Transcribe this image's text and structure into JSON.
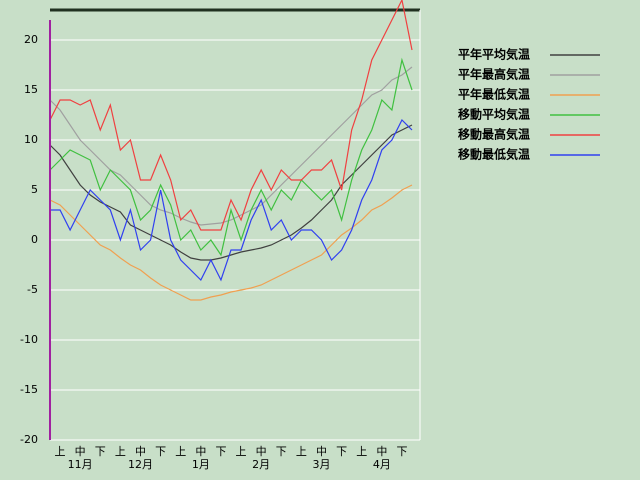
{
  "chart_data": {
    "type": "line",
    "dekads": [
      "上",
      "中",
      "下",
      "上",
      "中",
      "下",
      "上",
      "中",
      "下",
      "上",
      "中",
      "下",
      "上",
      "中",
      "下",
      "上",
      "中",
      "下"
    ],
    "months": [
      "11月",
      "12月",
      "1月",
      "2月",
      "3月",
      "4月"
    ],
    "ylim": [
      -20,
      23
    ],
    "yticks": [
      -20,
      -15,
      -10,
      -5,
      0,
      5,
      10,
      15,
      20
    ],
    "grid": true,
    "series": [
      {
        "name": "平年平均気温",
        "color": "#404040",
        "values": [
          9.5,
          8.5,
          7,
          5.5,
          4.5,
          3.8,
          3.3,
          2.8,
          1.5,
          1,
          0.5,
          0,
          -0.5,
          -1.2,
          -1.8,
          -2,
          -2,
          -1.8,
          -1.5,
          -1.2,
          -1,
          -0.8,
          -0.5,
          0,
          0.5,
          1.2,
          2,
          3,
          4,
          5.5,
          6.5,
          7.5,
          8.5,
          9.5,
          10.5,
          11,
          11.5
        ]
      },
      {
        "name": "平年最高気温",
        "color": "#a0a0a0",
        "values": [
          14,
          13,
          11.5,
          10,
          9,
          8,
          7,
          6.5,
          5.5,
          4.5,
          3.5,
          3,
          2.7,
          2.2,
          1.8,
          1.5,
          1.6,
          1.7,
          2,
          2.5,
          3,
          3.5,
          4.5,
          5.5,
          6.5,
          7.5,
          8.5,
          9.5,
          10.5,
          11.5,
          12.5,
          13.5,
          14.5,
          15,
          16,
          16.5,
          17.3
        ]
      },
      {
        "name": "平年最低気温",
        "color": "#f0a050",
        "values": [
          4,
          3.5,
          2.5,
          1.5,
          0.5,
          -0.5,
          -1,
          -1.8,
          -2.5,
          -3,
          -3.8,
          -4.5,
          -5,
          -5.5,
          -6,
          -6,
          -5.7,
          -5.5,
          -5.2,
          -5,
          -4.8,
          -4.5,
          -4,
          -3.5,
          -3,
          -2.5,
          -2,
          -1.5,
          -0.5,
          0.5,
          1.2,
          2,
          3,
          3.5,
          4.2,
          5,
          5.5
        ]
      },
      {
        "name": "移動平均気温",
        "color": "#40c040",
        "values": [
          7,
          8,
          9,
          8.5,
          8,
          5,
          7,
          6,
          5,
          2,
          3,
          5.5,
          3.5,
          0,
          1,
          -1,
          0,
          -1.5,
          3,
          0,
          3,
          5,
          3,
          5,
          4,
          6,
          5,
          4,
          5,
          2,
          6,
          9,
          11,
          14,
          13,
          18,
          15
        ]
      },
      {
        "name": "移動最高気温",
        "color": "#f04040",
        "values": [
          12,
          14,
          14,
          13.5,
          14,
          11,
          13.5,
          9,
          10,
          6,
          6,
          8.5,
          6,
          2,
          3,
          1,
          1,
          1,
          4,
          2,
          5,
          7,
          5,
          7,
          6,
          6,
          7,
          7,
          8,
          5,
          11,
          14,
          18,
          20,
          22,
          24,
          19
        ]
      },
      {
        "name": "移動最低気温",
        "color": "#3040f0",
        "values": [
          3,
          3,
          1,
          3,
          5,
          4,
          3,
          0,
          3,
          -1,
          0,
          5,
          0,
          -2,
          -3,
          -4,
          -2,
          -4,
          -1,
          -1,
          2,
          4,
          1,
          2,
          0,
          1,
          1,
          0,
          -2,
          -1,
          1,
          4,
          6,
          9,
          10,
          12,
          11
        ]
      }
    ]
  }
}
